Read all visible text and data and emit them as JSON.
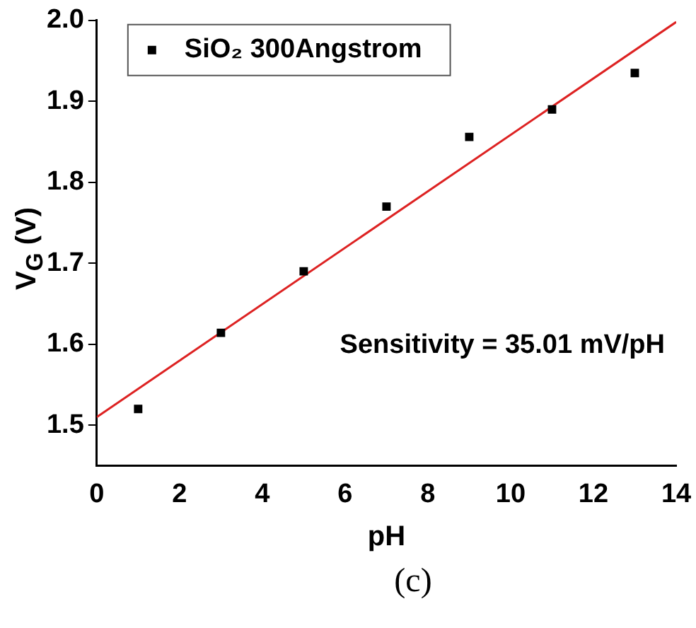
{
  "chart_data": {
    "type": "scatter",
    "xlabel": "pH",
    "ylabel": "V$_{G}$ (V)",
    "xlim": [
      0,
      14
    ],
    "xticks": [
      0,
      2,
      4,
      6,
      8,
      10,
      12,
      14
    ],
    "ylim": [
      1.45,
      2.0
    ],
    "yticks": [
      {
        "value": 1.5,
        "label": "1.5"
      },
      {
        "value": 1.6,
        "label": "1.6"
      },
      {
        "value": 1.7,
        "label": "1.7"
      },
      {
        "value": 1.8,
        "label": "1.8"
      },
      {
        "value": 1.9,
        "label": "1.9"
      },
      {
        "value": 2,
        "label": "2.0"
      }
    ],
    "x": [
      1,
      3,
      5,
      7,
      9,
      11,
      13
    ],
    "series": [
      {
        "name": "SiO₂ 300Angstrom",
        "color": "#000000",
        "marker": "square",
        "values": [
          1.52,
          1.614,
          1.69,
          1.77,
          1.856,
          1.89,
          1.935
        ]
      },
      {
        "type": "line",
        "color": "#dd2222",
        "x": [
          0,
          14
        ],
        "values": [
          1.51,
          1.998
        ]
      }
    ],
    "legend": "top left",
    "grid": false,
    "annotations": [
      "Sensitivity = 35.01 mV/pH",
      "(c)"
    ]
  }
}
